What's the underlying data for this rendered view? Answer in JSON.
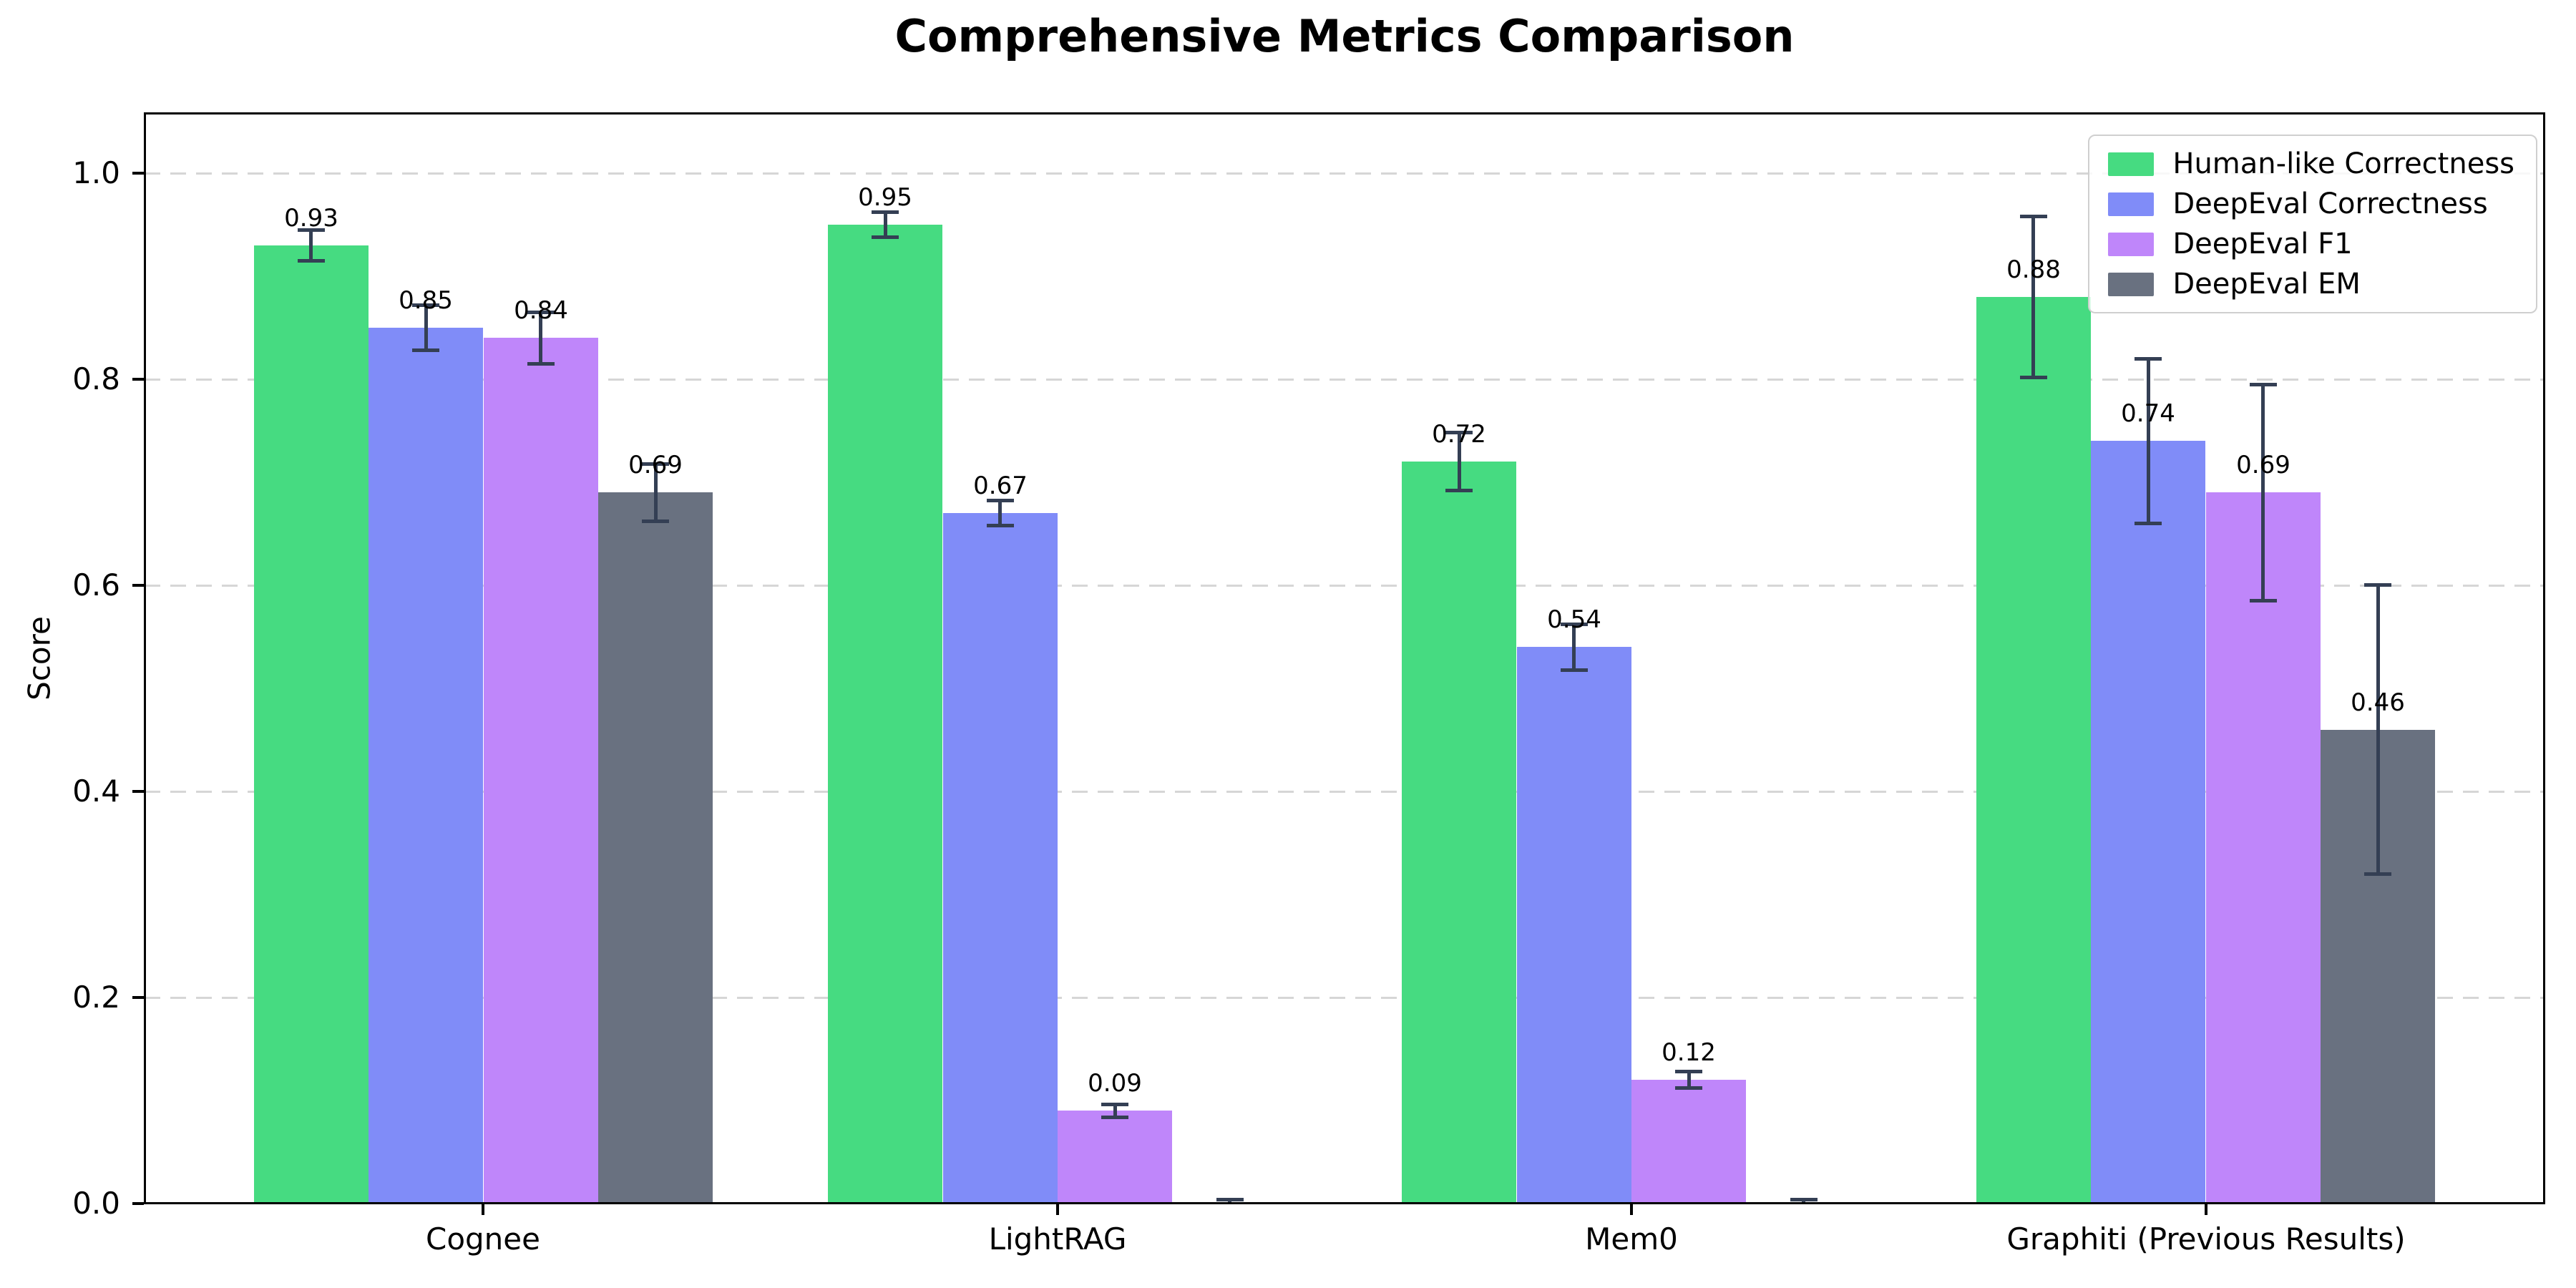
{
  "chart_data": {
    "type": "bar",
    "title": "Comprehensive Metrics Comparison",
    "ylabel": "Score",
    "xlabel": "",
    "categories": [
      "Cognee",
      "LightRAG",
      "Mem0",
      "Graphiti (Previous Results)"
    ],
    "series": [
      {
        "name": "Human-like Correctness",
        "color": "#46DB81",
        "values": [
          0.93,
          0.95,
          0.72,
          0.88
        ],
        "errors": [
          0.015,
          0.012,
          0.028,
          0.078
        ],
        "labels": [
          "0.93",
          "0.95",
          "0.72",
          "0.88"
        ]
      },
      {
        "name": "DeepEval Correctness",
        "color": "#808CF8",
        "values": [
          0.85,
          0.67,
          0.54,
          0.74
        ],
        "errors": [
          0.022,
          0.012,
          0.022,
          0.08
        ],
        "labels": [
          "0.85",
          "0.67",
          "0.54",
          "0.74"
        ]
      },
      {
        "name": "DeepEval F1",
        "color": "#BF86FA",
        "values": [
          0.84,
          0.09,
          0.12,
          0.69
        ],
        "errors": [
          0.025,
          0.006,
          0.008,
          0.105
        ],
        "labels": [
          "0.84",
          "0.09",
          "0.12",
          "0.69"
        ]
      },
      {
        "name": "DeepEval EM",
        "color": "#697180",
        "values": [
          0.69,
          0.0,
          0.0,
          0.46
        ],
        "errors": [
          0.028,
          0.004,
          0.004,
          0.14
        ],
        "labels": [
          "0.69",
          "",
          "",
          "0.46"
        ]
      }
    ],
    "yticks": [
      "0.0",
      "0.2",
      "0.4",
      "0.6",
      "0.8",
      "1.0"
    ],
    "ytick_values": [
      0.0,
      0.2,
      0.4,
      0.6,
      0.8,
      1.0
    ],
    "ylim": [
      0,
      1.058
    ],
    "grid": "horizontal-dashed",
    "legend_position": "upper-right",
    "colors": {
      "error_bar": "#343F54",
      "grid_line": "#d6d6d6",
      "axis": "#000000",
      "background": "#ffffff"
    }
  }
}
